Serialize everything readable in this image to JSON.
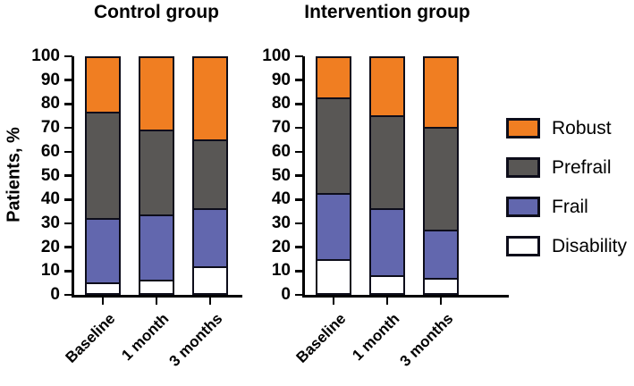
{
  "figure": {
    "ylabel": "Patients, %"
  },
  "legend": {
    "position": "right",
    "items": [
      {
        "label": "Robust",
        "color": "#F07E22"
      },
      {
        "label": "Prefrail",
        "color": "#595755"
      },
      {
        "label": "Frail",
        "color": "#6267AE"
      },
      {
        "label": "Disability",
        "color": "#FFFFFF"
      }
    ]
  },
  "chart_data": [
    {
      "type": "bar",
      "stacked": true,
      "title": "Control group",
      "categories": [
        "Baseline",
        "1 month",
        "3 months"
      ],
      "series": [
        {
          "name": "Disability",
          "color": "#FFFFFF",
          "values": [
            4,
            5,
            11
          ]
        },
        {
          "name": "Frail",
          "color": "#6267AE",
          "values": [
            27,
            27.5,
            24.5
          ]
        },
        {
          "name": "Prefrail",
          "color": "#595755",
          "values": [
            45.5,
            36.5,
            29
          ]
        },
        {
          "name": "Robust",
          "color": "#F07E22",
          "values": [
            23.5,
            31,
            35.5
          ]
        }
      ],
      "ylabel": "Patients, %",
      "ylim": [
        0,
        100
      ],
      "ytick_step": 10,
      "grid": false,
      "series_order_note": "series listed bottom-to-top of stack"
    },
    {
      "type": "bar",
      "stacked": true,
      "title": "Intervention group",
      "categories": [
        "Baseline",
        "1 month",
        "3 months"
      ],
      "series": [
        {
          "name": "Disability",
          "color": "#FFFFFF",
          "values": [
            14,
            7,
            6
          ]
        },
        {
          "name": "Frail",
          "color": "#6267AE",
          "values": [
            28,
            28.5,
            20
          ]
        },
        {
          "name": "Prefrail",
          "color": "#595755",
          "values": [
            41,
            39.5,
            44
          ]
        },
        {
          "name": "Robust",
          "color": "#F07E22",
          "values": [
            17,
            25,
            30
          ]
        }
      ],
      "ylabel": "Patients, %",
      "ylim": [
        0,
        100
      ],
      "ytick_step": 10,
      "grid": false,
      "series_order_note": "series listed bottom-to-top of stack"
    }
  ]
}
